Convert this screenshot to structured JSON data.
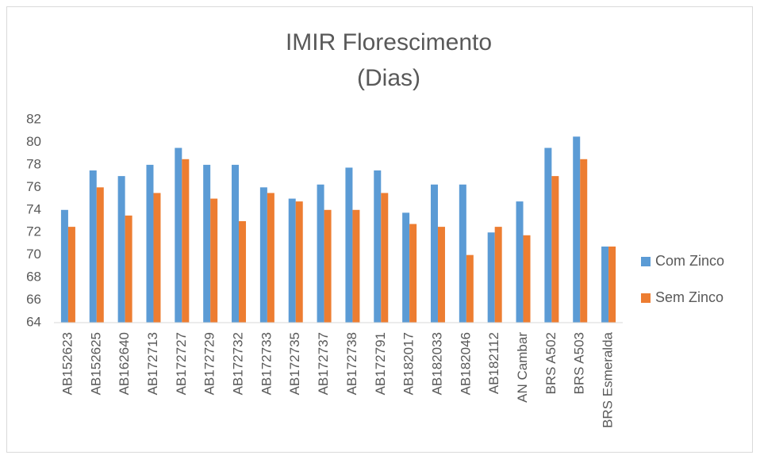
{
  "chart_data": {
    "type": "bar",
    "title": "IMIR Florescimento",
    "subtitle": "(Dias)",
    "categories": [
      "AB152623",
      "AB152625",
      "AB162640",
      "AB172713",
      "AB172727",
      "AB172729",
      "AB172732",
      "AB172733",
      "AB172735",
      "AB172737",
      "AB172738",
      "AB172791",
      "AB182017",
      "AB182033",
      "AB182046",
      "AB182112",
      "AN Cambar",
      "BRS A502",
      "BRS A503",
      "BRS Esmeralda"
    ],
    "series": [
      {
        "name": "Com Zinco",
        "color": "#5b9bd5",
        "values": [
          74,
          77.5,
          77,
          78,
          79.5,
          78,
          78,
          76,
          75,
          76.25,
          77.75,
          77.5,
          73.75,
          76.25,
          76.25,
          72,
          74.75,
          79.5,
          80.5,
          70.75
        ]
      },
      {
        "name": "Sem Zinco",
        "color": "#ed7d31",
        "values": [
          72.5,
          76,
          73.5,
          75.5,
          78.5,
          75,
          73,
          75.5,
          74.75,
          74,
          74,
          75.5,
          72.75,
          72.5,
          70,
          72.5,
          71.75,
          77,
          78.5,
          70.75
        ]
      }
    ],
    "ylim": [
      64,
      82
    ],
    "yticks": [
      64,
      66,
      68,
      70,
      72,
      74,
      76,
      78,
      80,
      82
    ],
    "grid": false,
    "legend": "right"
  }
}
